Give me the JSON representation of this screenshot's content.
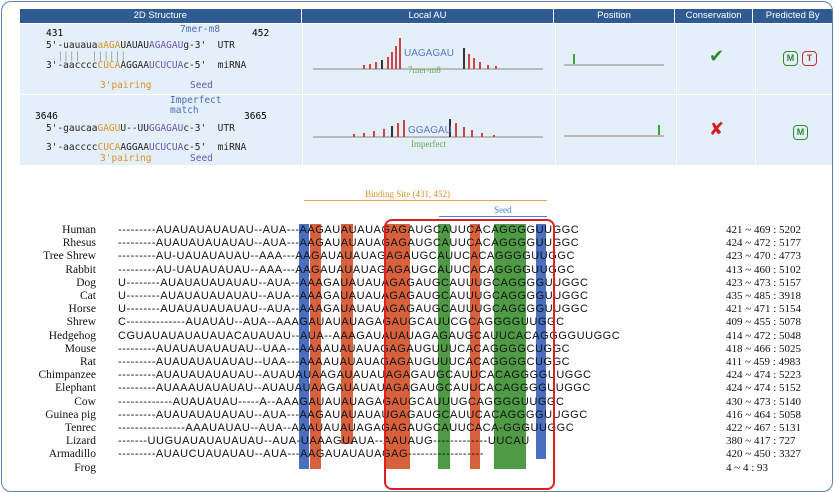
{
  "headers": [
    "2D Structure",
    "Local AU",
    "Position",
    "Conservation",
    "Predicted By"
  ],
  "row1": {
    "start": "431",
    "end": "452",
    "type_label": "7mer-m8",
    "utr_5": "5'-uauaua",
    "utr_o": "aAGA",
    "utr_m1": "UAUAU",
    "utr_p": "AGAGAU",
    "utr_3": "g-3'  UTR",
    "bars_top": "  ||||  ||||||",
    "mir_3": "3'-aacccc",
    "mir_o": "CUCA",
    "mir_m1": "AGGAA",
    "mir_p": "UCUCUA",
    "mir_5": "c-5'  miRNA",
    "pairing": "3'pairing",
    "seed": "Seed",
    "au_text": "UAGAGAU",
    "au_type": "7mer-m8",
    "conservation": "✔",
    "predicted": [
      "M",
      "T"
    ]
  },
  "row2": {
    "start": "3646",
    "end": "3665",
    "type_label": "Imperfect\nmatch",
    "utr_5": "5'-gaucaa",
    "utr_o": "GAGU",
    "utr_m1": "U--UU",
    "utr_p": "GGAGAU",
    "utr_3": "c-3'  UTR",
    "mir_3": "3'-aacccc",
    "mir_o": "CUCA",
    "mir_m1": "AGGAA",
    "mir_p": "UCUCUA",
    "mir_5": "c-5'  miRNA",
    "pairing": "3'pairing",
    "seed": "Seed",
    "au_text": "GGAGAU",
    "au_type": "Imperfect",
    "conservation": "✘",
    "predicted": [
      "M"
    ]
  },
  "alignment": {
    "binding_site": "Binding Site (431, 452)",
    "seed": "Seed",
    "rows": [
      {
        "sp": "Human",
        "seq": "---------AUAUAUAUAUAU--AUA---AAGAUAUAUAGAGAUGCAUUCACAGGGGUUGGC",
        "pos": "421 ~ 469 : 5202"
      },
      {
        "sp": "Rhesus",
        "seq": "---------AUAUAUAUAUAU--AUA---AAGAUAUAUAGAGAUGCAUUCACAGGGGUUGGC",
        "pos": "424 ~ 472 : 5177"
      },
      {
        "sp": "Tree Shrew",
        "seq": "---------AU-UAUAUAUAU--AAA---AAGAUAUAUAGAGAUGCAUUCACAGGGGUUGGC",
        "pos": "423 ~ 470 : 4773"
      },
      {
        "sp": "Rabbit",
        "seq": "---------AU-UAUAUAUAU--AAA---AAGAUAUAUAGAGAUGCAUUCACAGGGGUUGGC",
        "pos": "413 ~ 460 : 5102"
      },
      {
        "sp": "Dog",
        "seq": "U--------AUAUAUAUAUAU--AUA--AAAGAUAUAUAGAGAUGCAUUUGCAGGGGUUGGC",
        "pos": "423 ~ 473 : 5157"
      },
      {
        "sp": "Cat",
        "seq": "U--------AUAUAUAUAUAU--AUA--AAAGAUAUAUAGAGAUGCAUUUGCAGGGGUUGGC",
        "pos": "435 ~ 485 : 3918"
      },
      {
        "sp": "Horse",
        "seq": "U--------AUAUAUAUAUAU--AUA--AAAGAUAUAUAGAGAUGCAUUUGCAGGGGUUGGC",
        "pos": "421 ~ 471 : 5154"
      },
      {
        "sp": "Shrew",
        "seq": "C--------------AUAUAU--AUA--AAAGAUAUAUAGAGAUGCAUUCGCAGGGGUUGGC",
        "pos": "409 ~ 455 : 5078"
      },
      {
        "sp": "Hedgehog",
        "seq": "CGUAUAUAUAUAUACAUAUAU--AUA--AAAGAUAUAUAGAGAUGCAUUCACAGGGGUUGGC",
        "pos": "414 ~ 472 : 5048"
      },
      {
        "sp": "Mouse",
        "seq": "---------AUAUAUAUAUAU--UAA---AAAAUAUAUAGAGAUGUUUCACAGGGGCUGGC",
        "pos": "418 ~ 466 : 5025"
      },
      {
        "sp": "Rat",
        "seq": "---------AUAUAUAUAUAU--UAA---AAAAUAUAUAGAGAUGUUUCACAGGGGCUGGC",
        "pos": "411 ~ 459 : 4983"
      },
      {
        "sp": "Chimpanzee",
        "seq": "---------AUAUAUAUAUAU--AUAUAUAAGAUAUAUAGAGAUGCAUUCACAGGGGUUGGC",
        "pos": "424 ~ 474 : 5223"
      },
      {
        "sp": "Elephant",
        "seq": "---------AUAAAUAUAUAU--AUAUAUAAGAUAUAUAGAGAUGCAUUCACAGGGGUUGGC",
        "pos": "424 ~ 474 : 5152"
      },
      {
        "sp": "Cow",
        "seq": "-------------AUAUAUAU-----A--AAAGAUAUAUAGAGAUGCAUUUGCAGGGGUUGGC",
        "pos": "430 ~ 473 : 5140"
      },
      {
        "sp": "Guinea pig",
        "seq": "---------AUAUAUAUAUAU--AUA---AAGAUAUAUAUGAGAUGCAUUCACAGGGGUUGGC",
        "pos": "416 ~ 464 : 5058"
      },
      {
        "sp": "Tenrec",
        "seq": "----------------AAAUAUAU--AUA--AAAUAUAUAGAGAGAUGCAUUCACA-GGGUUGGC",
        "pos": "422 ~ 467 : 5131"
      },
      {
        "sp": "Lizard",
        "seq": "-------UUGUAUAUAUAUAU--AUA-UAAAGUAUA--AAUAUG-------------UUCAU",
        "pos": "380 ~ 417 : 727"
      },
      {
        "sp": "Armadillo",
        "seq": "---------AUAUCUAUAUAU--AUA---AAGAUAUAUAGAG------------------",
        "pos": "420 ~ 450 : 3327"
      },
      {
        "sp": "Frog",
        "seq": "",
        "pos": "4 ~ 4 : 93"
      }
    ]
  }
}
